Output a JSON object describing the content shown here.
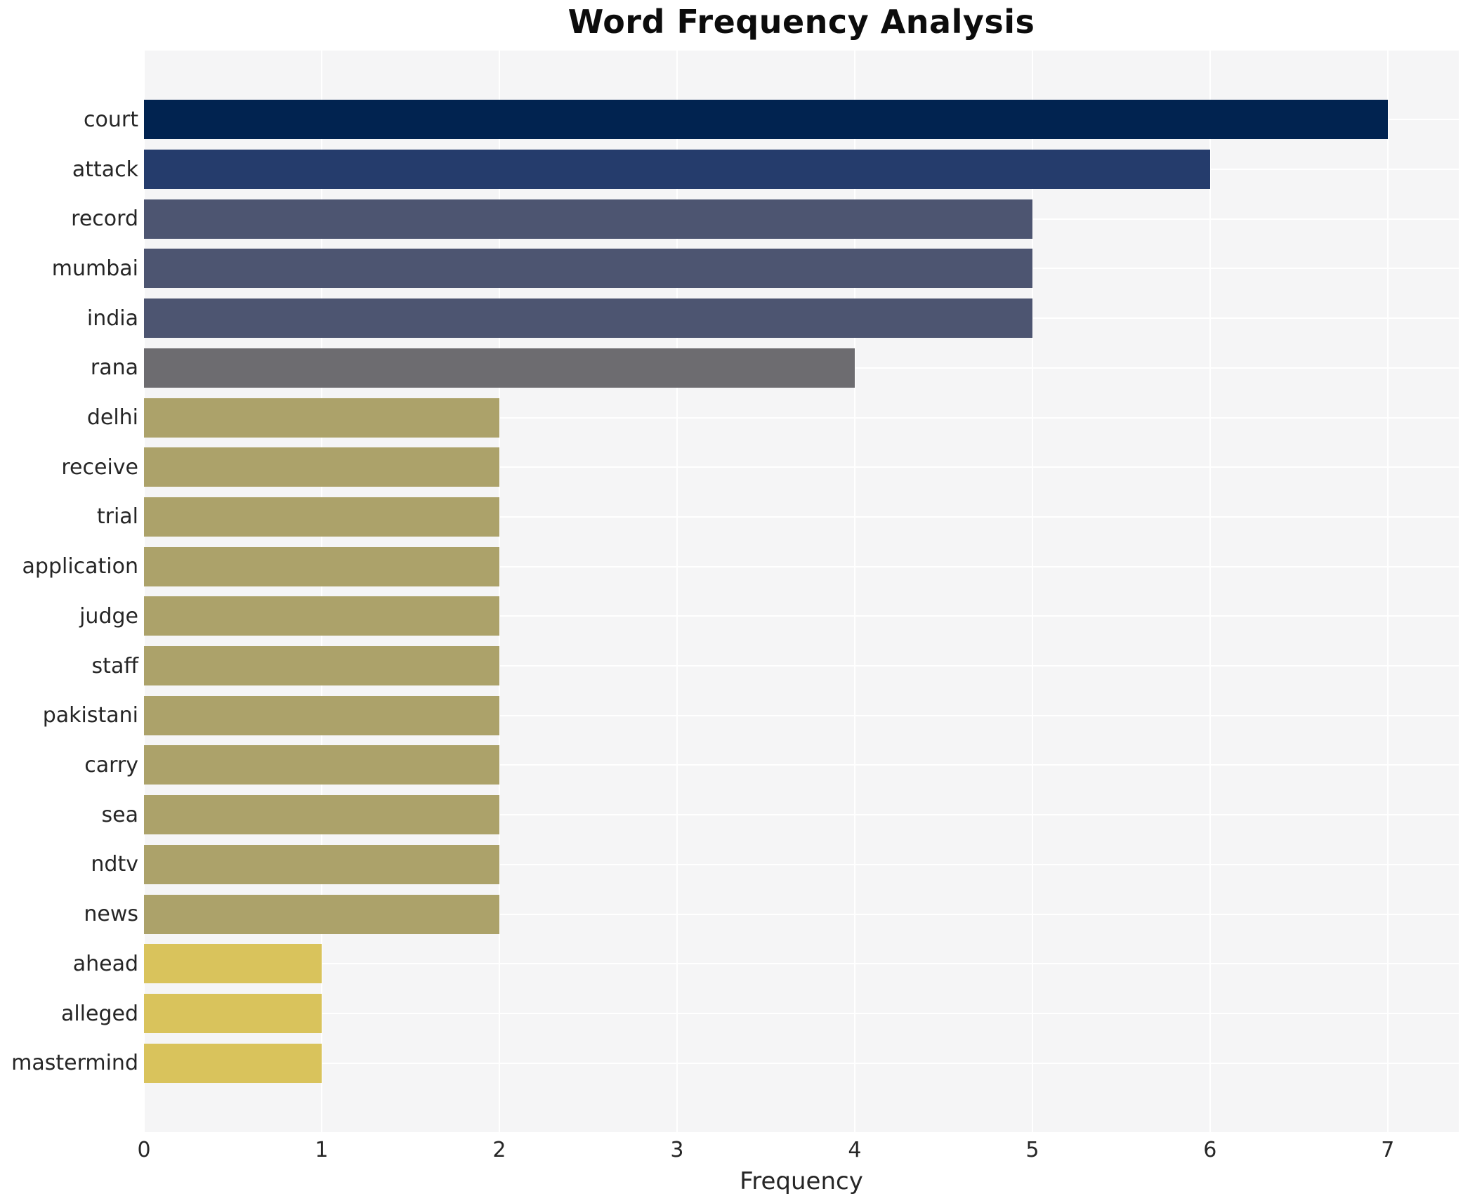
{
  "title": "Word Frequency Analysis",
  "axis": {
    "xlabel": "Frequency",
    "xtick_labels": [
      "0",
      "1",
      "2",
      "3",
      "4",
      "5",
      "6",
      "7"
    ]
  },
  "colors": {
    "figure_background": "#ffffff",
    "plot_background": "#f5f5f6",
    "grid": "#ffffff",
    "text": "#262626",
    "title_text": "#0c0c0c"
  },
  "chart_data": {
    "type": "bar",
    "orientation": "horizontal",
    "title": "Word Frequency Analysis",
    "xlabel": "Frequency",
    "ylabel": "",
    "grid": true,
    "legend": false,
    "xlim": [
      0,
      7.4
    ],
    "xticks": [
      0,
      1,
      2,
      3,
      4,
      5,
      6,
      7
    ],
    "categories": [
      "court",
      "attack",
      "record",
      "mumbai",
      "india",
      "rana",
      "delhi",
      "receive",
      "trial",
      "application",
      "judge",
      "staff",
      "pakistani",
      "carry",
      "sea",
      "ndtv",
      "news",
      "ahead",
      "alleged",
      "mastermind"
    ],
    "values": [
      7,
      6,
      5,
      5,
      5,
      4,
      2,
      2,
      2,
      2,
      2,
      2,
      2,
      2,
      2,
      2,
      2,
      1,
      1,
      1
    ],
    "bar_colors": [
      "#012350",
      "#253c6c",
      "#4d5571",
      "#4d5571",
      "#4d5571",
      "#6d6c70",
      "#aca26a",
      "#aca26a",
      "#aca26a",
      "#aca26a",
      "#aca26a",
      "#aca26a",
      "#aca26a",
      "#aca26a",
      "#aca26a",
      "#aca26a",
      "#aca26a",
      "#d9c35c",
      "#d9c35c",
      "#d9c35c"
    ]
  }
}
